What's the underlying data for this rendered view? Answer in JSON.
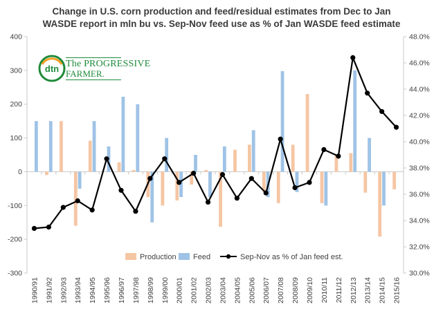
{
  "title_line1": "Change in U.S. corn production and feed/residual estimates from Dec to Jan",
  "title_line2": "WASDE  report in mln bu vs. Sep-Nov feed use as % of Jan WASDE  feed estimate",
  "logo": {
    "mark": "dtn",
    "line1": "The PROGRESSIVE",
    "line2": "FARMER."
  },
  "colors": {
    "production": "#f5c6a4",
    "feed": "#9fc3e6",
    "line": "#000000",
    "axis": "#c8c8c8",
    "text": "#404040"
  },
  "chart_data": {
    "type": "bar",
    "categories": [
      "1990/91",
      "1991/92",
      "1992/93",
      "1993/94",
      "1994/95",
      "1995/96",
      "1996/97",
      "1997/98",
      "1998/99",
      "1999/00",
      "2000/01",
      "2001/02",
      "2002/03",
      "2003/04",
      "2004/05",
      "2005/06",
      "2006/07",
      "2007/08",
      "2008/09",
      "2009/10",
      "2010/11",
      "2011/12",
      "2012/13",
      "2013/14",
      "2014/15",
      "2015/16"
    ],
    "series": [
      {
        "name": "Production",
        "axis": "left",
        "kind": "bar",
        "values": [
          0,
          -10,
          150,
          -160,
          92,
          0,
          28,
          5,
          -75,
          -100,
          -85,
          -38,
          5,
          -163,
          65,
          80,
          -60,
          -93,
          80,
          230,
          -93,
          48,
          55,
          -62,
          -192,
          -52
        ]
      },
      {
        "name": "Feed",
        "axis": "left",
        "kind": "bar",
        "values": [
          150,
          150,
          0,
          -50,
          150,
          75,
          222,
          200,
          -150,
          100,
          -75,
          50,
          -75,
          75,
          0,
          123,
          -75,
          298,
          -60,
          0,
          -100,
          0,
          300,
          100,
          -100,
          0
        ]
      },
      {
        "name": "Sep-Nov as % of Jan feed est.",
        "axis": "right",
        "kind": "line",
        "values": [
          33.4,
          33.5,
          35.0,
          35.5,
          34.8,
          38.7,
          36.3,
          34.7,
          37.2,
          38.7,
          36.9,
          37.6,
          35.4,
          37.5,
          35.7,
          37.2,
          36.1,
          40.2,
          36.5,
          36.9,
          39.4,
          38.9,
          46.4,
          43.7,
          42.3,
          41.1
        ]
      }
    ],
    "yleft_ticks": [
      "400",
      "300",
      "200",
      "100",
      "0",
      "-100",
      "-200",
      "-300"
    ],
    "yright_ticks": [
      "48.0%",
      "46.0%",
      "44.0%",
      "42.0%",
      "40.0%",
      "38.0%",
      "36.0%",
      "34.0%",
      "32.0%",
      "30.0%"
    ],
    "ylim_left": [
      -300,
      400
    ],
    "ylim_right": [
      30,
      48
    ],
    "legend_position": "bottom-inside",
    "grid": false
  }
}
